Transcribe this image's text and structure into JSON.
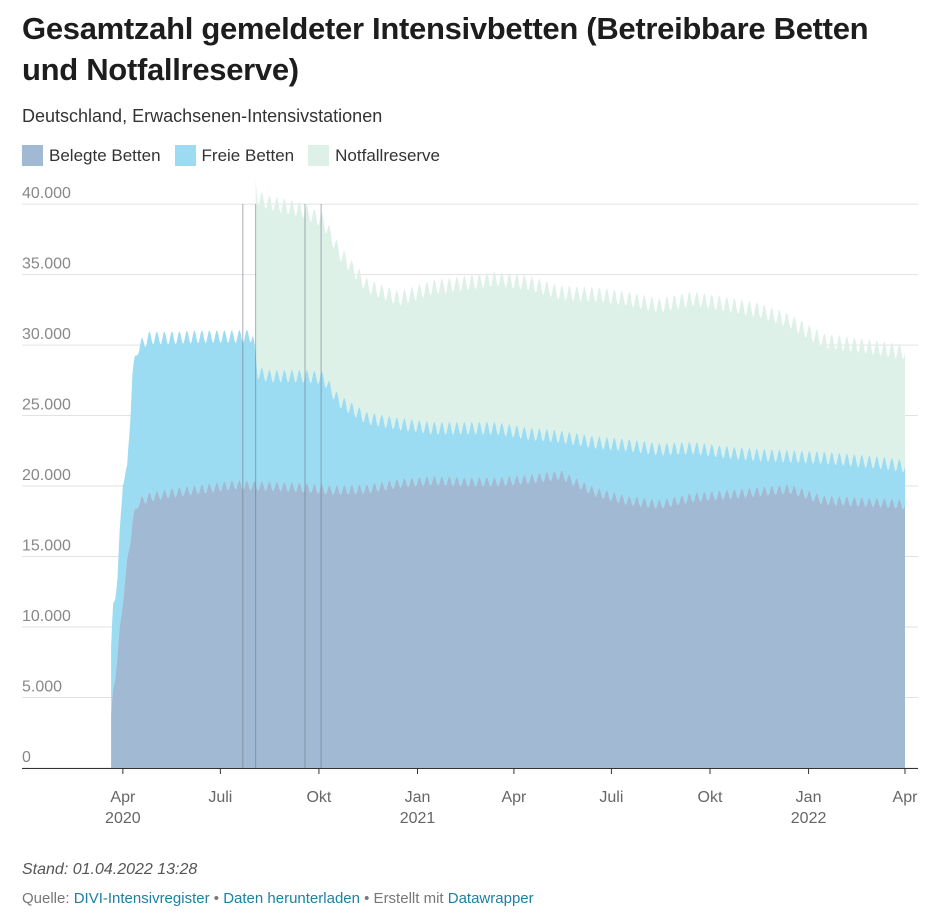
{
  "title": "Gesamtzahl gemeldeter Intensivbetten (Betreibbare Betten und Notfallreserve)",
  "subtitle": "Deutschland, Erwachsenen-Intensivstationen",
  "stand": "Stand: 01.04.2022 13:28",
  "footer": {
    "source_label": "Quelle:",
    "source_link": "DIVI-Intensivregister",
    "sep1": "•",
    "download_link": "Daten herunterladen",
    "sep2": "• Erstellt mit",
    "tool_link": "Datawrapper"
  },
  "colors": {
    "belegte": "#a2b9d3",
    "freie": "#9bdcf3",
    "notfall": "#def1e9",
    "grid": "#e2e2e2",
    "axis": "#333333"
  },
  "chart_data": {
    "type": "area",
    "stacked": true,
    "ylim": [
      0,
      41000
    ],
    "yticks": [
      {
        "value": 0,
        "label": "0"
      },
      {
        "value": 5000,
        "label": "5.000"
      },
      {
        "value": 10000,
        "label": "10.000"
      },
      {
        "value": 15000,
        "label": "15.000"
      },
      {
        "value": 20000,
        "label": "20.000"
      },
      {
        "value": 25000,
        "label": "25.000"
      },
      {
        "value": 30000,
        "label": "30.000"
      },
      {
        "value": 35000,
        "label": "35.000"
      },
      {
        "value": 40000,
        "label": "40.000"
      }
    ],
    "xrange": [
      "2020-03-20",
      "2022-04-01"
    ],
    "xticks": [
      {
        "date": "2020-04-01",
        "label": "Apr",
        "year": "2020"
      },
      {
        "date": "2020-07-01",
        "label": "Juli",
        "year": ""
      },
      {
        "date": "2020-10-01",
        "label": "Okt",
        "year": ""
      },
      {
        "date": "2021-01-01",
        "label": "Jan",
        "year": "2021"
      },
      {
        "date": "2021-04-01",
        "label": "Apr",
        "year": ""
      },
      {
        "date": "2021-07-01",
        "label": "Juli",
        "year": ""
      },
      {
        "date": "2021-10-01",
        "label": "Okt",
        "year": ""
      },
      {
        "date": "2022-01-01",
        "label": "Jan",
        "year": "2022"
      },
      {
        "date": "2022-04-01",
        "label": "Apr",
        "year": ""
      }
    ],
    "markers": [
      "2020-07-22",
      "2020-08-03",
      "2020-09-18",
      "2020-10-03"
    ],
    "series": [
      {
        "name": "Belegte Betten",
        "x": [
          "2020-03-20",
          "2020-03-23",
          "2020-03-27",
          "2020-04-01",
          "2020-04-05",
          "2020-04-10",
          "2020-04-15",
          "2020-04-25",
          "2020-05-15",
          "2020-06-15",
          "2020-07-15",
          "2020-08-15",
          "2020-09-15",
          "2020-10-15",
          "2020-11-15",
          "2020-12-15",
          "2021-01-15",
          "2021-02-15",
          "2021-03-15",
          "2021-04-15",
          "2021-05-15",
          "2021-06-15",
          "2021-07-15",
          "2021-08-15",
          "2021-09-15",
          "2021-10-15",
          "2021-11-15",
          "2021-12-15",
          "2022-01-15",
          "2022-02-15",
          "2022-03-15",
          "2022-04-01"
        ],
        "values": [
          2500,
          5500,
          8000,
          12000,
          14500,
          17500,
          18800,
          19200,
          19500,
          19800,
          20100,
          20000,
          19900,
          19700,
          19800,
          20200,
          20400,
          20300,
          20300,
          20500,
          20800,
          19600,
          19000,
          18700,
          19200,
          19400,
          19600,
          19800,
          19000,
          18900,
          18800,
          18700
        ]
      },
      {
        "name": "Freie Betten",
        "x": [
          "2020-03-20",
          "2020-03-23",
          "2020-03-27",
          "2020-04-01",
          "2020-04-05",
          "2020-04-10",
          "2020-04-15",
          "2020-04-25",
          "2020-05-15",
          "2020-06-15",
          "2020-07-15",
          "2020-07-31",
          "2020-08-05",
          "2020-08-15",
          "2020-09-15",
          "2020-10-05",
          "2020-10-20",
          "2020-11-15",
          "2020-12-15",
          "2021-01-15",
          "2021-02-15",
          "2021-03-15",
          "2021-04-15",
          "2021-05-15",
          "2021-06-15",
          "2021-07-15",
          "2021-08-15",
          "2021-09-15",
          "2021-10-15",
          "2021-11-15",
          "2021-12-15",
          "2022-01-15",
          "2022-02-15",
          "2022-03-15",
          "2022-04-01"
        ],
        "values": [
          4000,
          6000,
          5500,
          8500,
          6500,
          10500,
          11000,
          11300,
          11000,
          10800,
          10500,
          10600,
          8000,
          7800,
          7900,
          7900,
          6300,
          5000,
          4200,
          3700,
          3800,
          3800,
          3200,
          2700,
          3500,
          3900,
          3900,
          3500,
          3000,
          2600,
          2300,
          3000,
          2900,
          2800,
          2700
        ]
      },
      {
        "name": "Notfallreserve",
        "x": [
          "2020-03-20",
          "2020-08-02",
          "2020-08-03",
          "2020-08-15",
          "2020-09-15",
          "2020-10-15",
          "2020-11-15",
          "2020-12-15",
          "2021-01-15",
          "2021-02-15",
          "2021-03-15",
          "2021-04-15",
          "2021-05-15",
          "2021-06-15",
          "2021-07-15",
          "2021-08-15",
          "2021-09-15",
          "2021-10-15",
          "2021-11-15",
          "2021-12-15",
          "2022-01-15",
          "2022-02-15",
          "2022-03-15",
          "2022-04-01"
        ],
        "values": [
          0,
          0,
          12400,
          12300,
          11800,
          10800,
          9400,
          8900,
          10000,
          10300,
          10600,
          10700,
          10200,
          10500,
          10400,
          10200,
          10600,
          10500,
          10300,
          9600,
          8300,
          8200,
          8100,
          8100
        ]
      }
    ]
  }
}
